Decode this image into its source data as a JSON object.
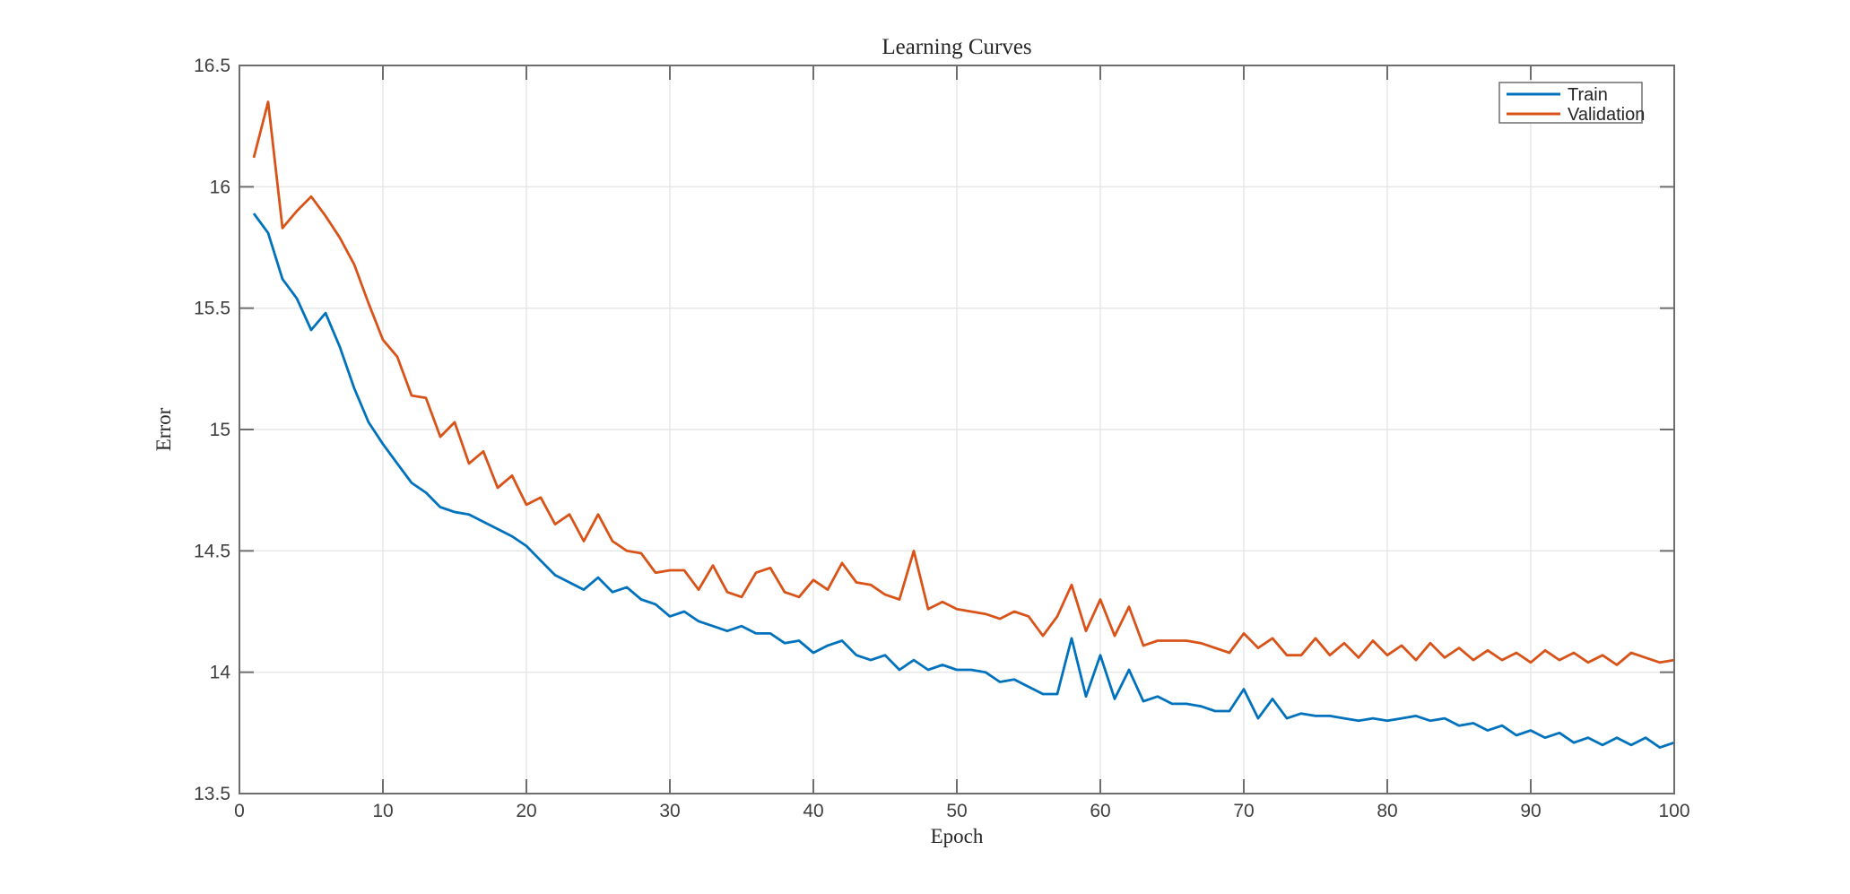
{
  "chart_data": {
    "type": "line",
    "title": "Learning Curves",
    "xlabel": "Epoch",
    "ylabel": "Error",
    "xlim": [
      0,
      100
    ],
    "ylim": [
      13.5,
      16.5
    ],
    "xticks": [
      0,
      10,
      20,
      30,
      40,
      50,
      60,
      70,
      80,
      90,
      100
    ],
    "yticks": [
      13.5,
      14,
      14.5,
      15,
      15.5,
      16,
      16.5
    ],
    "grid": true,
    "legend": {
      "position": "northeast"
    },
    "x": [
      1,
      2,
      3,
      4,
      5,
      6,
      7,
      8,
      9,
      10,
      11,
      12,
      13,
      14,
      15,
      16,
      17,
      18,
      19,
      20,
      21,
      22,
      23,
      24,
      25,
      26,
      27,
      28,
      29,
      30,
      31,
      32,
      33,
      34,
      35,
      36,
      37,
      38,
      39,
      40,
      41,
      42,
      43,
      44,
      45,
      46,
      47,
      48,
      49,
      50,
      51,
      52,
      53,
      54,
      55,
      56,
      57,
      58,
      59,
      60,
      61,
      62,
      63,
      64,
      65,
      66,
      67,
      68,
      69,
      70,
      71,
      72,
      73,
      74,
      75,
      76,
      77,
      78,
      79,
      80,
      81,
      82,
      83,
      84,
      85,
      86,
      87,
      88,
      89,
      90,
      91,
      92,
      93,
      94,
      95,
      96,
      97,
      98,
      99,
      100
    ],
    "series": [
      {
        "name": "Train",
        "color": "#0072BD",
        "values": [
          15.89,
          15.81,
          15.62,
          15.54,
          15.41,
          15.48,
          15.34,
          15.17,
          15.03,
          14.94,
          14.86,
          14.78,
          14.74,
          14.68,
          14.66,
          14.65,
          14.62,
          14.59,
          14.56,
          14.52,
          14.46,
          14.4,
          14.37,
          14.34,
          14.39,
          14.33,
          14.35,
          14.3,
          14.28,
          14.23,
          14.25,
          14.21,
          14.19,
          14.17,
          14.19,
          14.16,
          14.16,
          14.12,
          14.13,
          14.08,
          14.11,
          14.13,
          14.07,
          14.05,
          14.07,
          14.01,
          14.05,
          14.01,
          14.03,
          14.01,
          14.01,
          14.0,
          13.96,
          13.97,
          13.94,
          13.91,
          13.91,
          14.14,
          13.9,
          14.07,
          13.89,
          14.01,
          13.88,
          13.9,
          13.87,
          13.87,
          13.86,
          13.84,
          13.84,
          13.93,
          13.81,
          13.89,
          13.81,
          13.83,
          13.82,
          13.82,
          13.81,
          13.8,
          13.81,
          13.8,
          13.81,
          13.82,
          13.8,
          13.81,
          13.78,
          13.79,
          13.76,
          13.78,
          13.74,
          13.76,
          13.73,
          13.75,
          13.71,
          13.73,
          13.7,
          13.73,
          13.7,
          13.73,
          13.69,
          13.71
        ]
      },
      {
        "name": "Validation",
        "color": "#D95319",
        "values": [
          16.12,
          16.35,
          15.83,
          15.9,
          15.96,
          15.88,
          15.79,
          15.68,
          15.52,
          15.37,
          15.3,
          15.14,
          15.13,
          14.97,
          15.03,
          14.86,
          14.91,
          14.76,
          14.81,
          14.69,
          14.72,
          14.61,
          14.65,
          14.54,
          14.65,
          14.54,
          14.5,
          14.49,
          14.41,
          14.42,
          14.42,
          14.34,
          14.44,
          14.33,
          14.31,
          14.41,
          14.43,
          14.33,
          14.31,
          14.38,
          14.34,
          14.45,
          14.37,
          14.36,
          14.32,
          14.3,
          14.5,
          14.26,
          14.29,
          14.26,
          14.25,
          14.24,
          14.22,
          14.25,
          14.23,
          14.15,
          14.23,
          14.36,
          14.17,
          14.3,
          14.15,
          14.27,
          14.11,
          14.13,
          14.13,
          14.13,
          14.12,
          14.1,
          14.08,
          14.16,
          14.1,
          14.14,
          14.07,
          14.07,
          14.14,
          14.07,
          14.12,
          14.06,
          14.13,
          14.07,
          14.11,
          14.05,
          14.12,
          14.06,
          14.1,
          14.05,
          14.09,
          14.05,
          14.08,
          14.04,
          14.09,
          14.05,
          14.08,
          14.04,
          14.07,
          14.03,
          14.08,
          14.06,
          14.04,
          14.05
        ]
      }
    ]
  }
}
